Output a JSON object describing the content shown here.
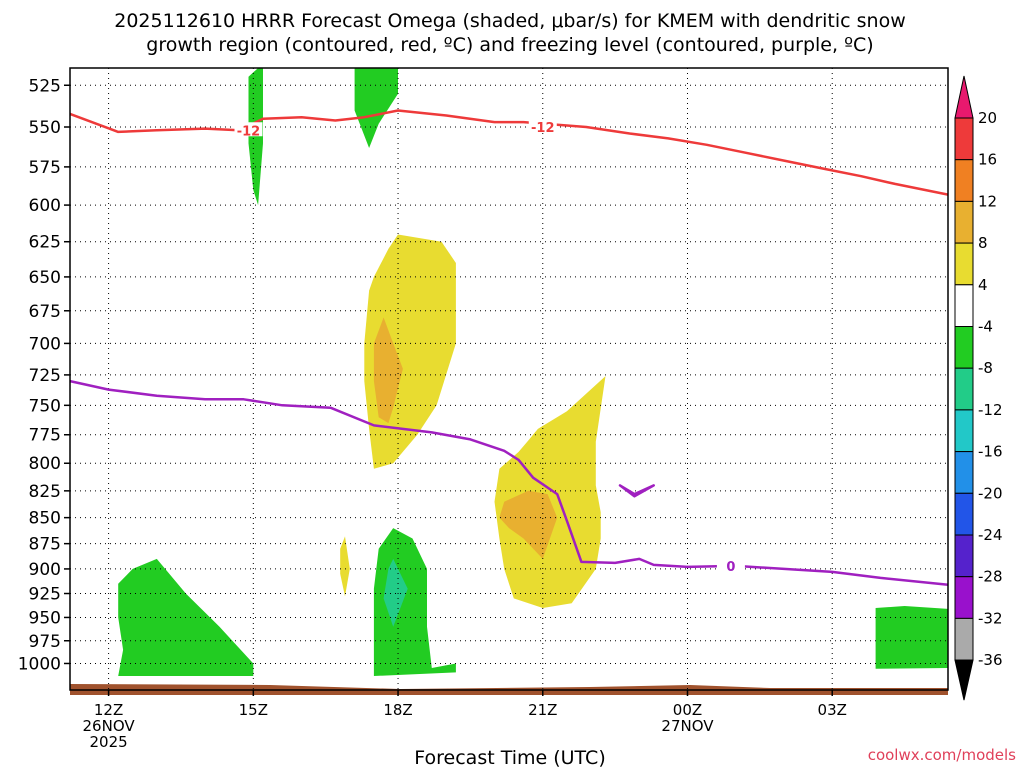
{
  "chart_data": {
    "type": "contour",
    "title_line1": "2025112610 HRRR Forecast Omega (shaded, μbar/s) for KMEM with dendritic snow",
    "title_line2": "growth region (contoured, red, ºC) and freezing level (contoured, purple, ºC)",
    "xlabel": "Forecast Time (UTC)",
    "credit": "coolwx.com/models",
    "x_range_hours": [
      8.2,
      26.4
    ],
    "y_range_hpa": [
      515,
      1030
    ],
    "y_ticks": [
      525,
      550,
      575,
      600,
      625,
      650,
      675,
      700,
      725,
      750,
      775,
      800,
      825,
      850,
      875,
      900,
      925,
      950,
      975,
      1000
    ],
    "x_ticks": [
      {
        "hour": 9,
        "lines": [
          "12Z",
          "26NOV",
          "2025"
        ]
      },
      {
        "hour": 12,
        "lines": [
          "15Z"
        ]
      },
      {
        "hour": 15,
        "lines": [
          "18Z"
        ]
      },
      {
        "hour": 18,
        "lines": [
          "21Z"
        ]
      },
      {
        "hour": 21,
        "lines": [
          "00Z",
          "27NOV"
        ]
      },
      {
        "hour": 24,
        "lines": [
          "03Z"
        ]
      }
    ],
    "colorbar": {
      "labels": [
        "20",
        "16",
        "12",
        "8",
        "4",
        "-4",
        "-8",
        "-12",
        "-16",
        "-20",
        "-24",
        "-28",
        "-32",
        "-36"
      ],
      "colors": [
        "#e8196e",
        "#ee3a3a",
        "#f08022",
        "#e8b030",
        "#e8dc30",
        "#ffffff",
        "#22cc22",
        "#22cc88",
        "#22c8c8",
        "#2290e8",
        "#2255e8",
        "#5522cc",
        "#9911cc",
        "#aaaaaa",
        "#000000"
      ]
    },
    "contours": [
      {
        "name": "dendritic snow growth region",
        "value": -12,
        "label": "-12",
        "color": "#ee3a3a",
        "points": [
          [
            8.2,
            542
          ],
          [
            9.2,
            553
          ],
          [
            10,
            552
          ],
          [
            11,
            551
          ],
          [
            11.7,
            552
          ],
          [
            12.2,
            545
          ],
          [
            13,
            544
          ],
          [
            13.7,
            546
          ],
          [
            14.3,
            544
          ],
          [
            15,
            540
          ],
          [
            16,
            543
          ],
          [
            17,
            547
          ],
          [
            17.6,
            547
          ],
          [
            18.9,
            550
          ],
          [
            19.8,
            554
          ],
          [
            20.6,
            557
          ],
          [
            21.4,
            561
          ],
          [
            22.2,
            566
          ],
          [
            23,
            571
          ],
          [
            23.8,
            576
          ],
          [
            24.6,
            581
          ],
          [
            25.3,
            586
          ],
          [
            26.4,
            593
          ]
        ],
        "label_positions": [
          [
            11.9,
            552
          ],
          [
            18,
            550
          ]
        ]
      },
      {
        "name": "freezing level",
        "value": 0,
        "label": "0",
        "color": "#a020c0",
        "points": [
          [
            8.2,
            730
          ],
          [
            9,
            737
          ],
          [
            10,
            742
          ],
          [
            11,
            745
          ],
          [
            11.8,
            745
          ],
          [
            12.6,
            750
          ],
          [
            13.6,
            752
          ],
          [
            14.5,
            767
          ],
          [
            15.7,
            773
          ],
          [
            16.5,
            779
          ],
          [
            17.2,
            789
          ],
          [
            17.5,
            797
          ],
          [
            17.8,
            813
          ],
          [
            18.3,
            828
          ],
          [
            18.5,
            853
          ],
          [
            18.8,
            893
          ],
          [
            19.5,
            894
          ],
          [
            20.0,
            890
          ],
          [
            20.3,
            896
          ],
          [
            21,
            898
          ],
          [
            22,
            897
          ],
          [
            23,
            900
          ],
          [
            24,
            903
          ],
          [
            25,
            909
          ],
          [
            26.4,
            916
          ]
        ],
        "label_positions": [
          [
            21.9,
            897
          ]
        ]
      },
      {
        "name": "freezing level closed loop",
        "value": 0,
        "label": "",
        "color": "#a020c0",
        "points": [
          [
            19.6,
            820
          ],
          [
            19.9,
            830
          ],
          [
            20.3,
            820
          ],
          [
            19.9,
            828
          ]
        ],
        "closed": true
      }
    ],
    "shaded_regions": [
      {
        "level": "4 to 8",
        "color": "#e8dc30",
        "label": "upward motion 4-8",
        "points": [
          [
            14.5,
            650
          ],
          [
            14.8,
            630
          ],
          [
            15.0,
            620
          ],
          [
            15.9,
            625
          ],
          [
            16.2,
            640
          ],
          [
            16.2,
            700
          ],
          [
            15.8,
            750
          ],
          [
            15.4,
            775
          ],
          [
            14.9,
            800
          ],
          [
            14.5,
            805
          ],
          [
            14.4,
            770
          ],
          [
            14.3,
            730
          ],
          [
            14.3,
            700
          ],
          [
            14.4,
            660
          ]
        ]
      },
      {
        "level": "8 to 12",
        "color": "#e8b030",
        "label": "upward motion 8-12",
        "points": [
          [
            14.7,
            680
          ],
          [
            14.9,
            700
          ],
          [
            15.1,
            720
          ],
          [
            14.9,
            752
          ],
          [
            14.8,
            765
          ],
          [
            14.6,
            760
          ],
          [
            14.5,
            730
          ],
          [
            14.5,
            700
          ]
        ]
      },
      {
        "level": "4 to 8",
        "color": "#e8dc30",
        "label": "upward motion 4-8",
        "points": [
          [
            17.5,
            790
          ],
          [
            17.7,
            780
          ],
          [
            17.9,
            770
          ],
          [
            18.5,
            755
          ],
          [
            19.3,
            726
          ],
          [
            19.1,
            781
          ],
          [
            19.1,
            820
          ],
          [
            19.2,
            845
          ],
          [
            19.2,
            870
          ],
          [
            19.1,
            900
          ],
          [
            18.6,
            935
          ],
          [
            18.0,
            940
          ],
          [
            17.4,
            930
          ],
          [
            17.2,
            900
          ],
          [
            17.1,
            870
          ],
          [
            17.0,
            835
          ],
          [
            17.1,
            805
          ]
        ]
      },
      {
        "level": "8 to 12",
        "color": "#e8b030",
        "label": "upward motion 8-12",
        "points": [
          [
            17.2,
            835
          ],
          [
            17.7,
            825
          ],
          [
            18.1,
            828
          ],
          [
            18.3,
            850
          ],
          [
            18.0,
            890
          ],
          [
            17.6,
            870
          ],
          [
            17.3,
            860
          ],
          [
            17.1,
            850
          ]
        ]
      },
      {
        "level": "4 to 8",
        "color": "#e8dc30",
        "label": "upward motion 4-8",
        "points": [
          [
            13.9,
            868
          ],
          [
            14.0,
            900
          ],
          [
            13.9,
            928
          ],
          [
            13.8,
            905
          ],
          [
            13.8,
            880
          ]
        ]
      },
      {
        "level": "-8 to -4",
        "color": "#22cc22",
        "label": "sinking motion -8 to -4",
        "points": [
          [
            12.1,
            515
          ],
          [
            12.2,
            515
          ],
          [
            12.2,
            560
          ],
          [
            12.1,
            600
          ],
          [
            12.0,
            590
          ],
          [
            11.9,
            560
          ],
          [
            11.9,
            520
          ]
        ]
      },
      {
        "level": "-8 to -4",
        "color": "#22cc22",
        "label": "sinking motion -8 to -4",
        "points": [
          [
            14.1,
            515
          ],
          [
            15.0,
            515
          ],
          [
            15.0,
            530
          ],
          [
            14.6,
            548
          ],
          [
            14.4,
            563
          ],
          [
            14.1,
            540
          ]
        ]
      },
      {
        "level": "-8 to -4",
        "color": "#22cc22",
        "label": "sinking motion -8 to -4",
        "points": [
          [
            9.2,
            915
          ],
          [
            9.5,
            900
          ],
          [
            10.0,
            890
          ],
          [
            10.6,
            925
          ],
          [
            11.3,
            960
          ],
          [
            12,
            1000
          ],
          [
            12,
            1014
          ],
          [
            9.2,
            1014
          ],
          [
            9.3,
            985
          ],
          [
            9.2,
            950
          ]
        ]
      },
      {
        "level": "-8 to -4",
        "color": "#22cc22",
        "label": "sinking motion -8 to -4",
        "points": [
          [
            14.9,
            860
          ],
          [
            15.3,
            870
          ],
          [
            15.6,
            900
          ],
          [
            15.6,
            960
          ],
          [
            15.7,
            1005
          ],
          [
            16.2,
            1000
          ],
          [
            16.2,
            1010
          ],
          [
            14.5,
            1014
          ],
          [
            14.5,
            980
          ],
          [
            14.5,
            920
          ],
          [
            14.6,
            880
          ]
        ]
      },
      {
        "level": "-12 to -8",
        "color": "#22cc88",
        "label": "sinking motion -12 to -8",
        "points": [
          [
            14.9,
            890
          ],
          [
            15.2,
            920
          ],
          [
            14.9,
            960
          ],
          [
            14.7,
            930
          ],
          [
            14.8,
            900
          ]
        ]
      },
      {
        "level": "-8 to -4",
        "color": "#22cc22",
        "label": "sinking motion -8 to -4",
        "points": [
          [
            24.9,
            940
          ],
          [
            25.5,
            938
          ],
          [
            26.4,
            941
          ],
          [
            26.4,
            1005
          ],
          [
            24.9,
            1006
          ]
        ]
      }
    ],
    "ground_color": "#a0522d"
  }
}
